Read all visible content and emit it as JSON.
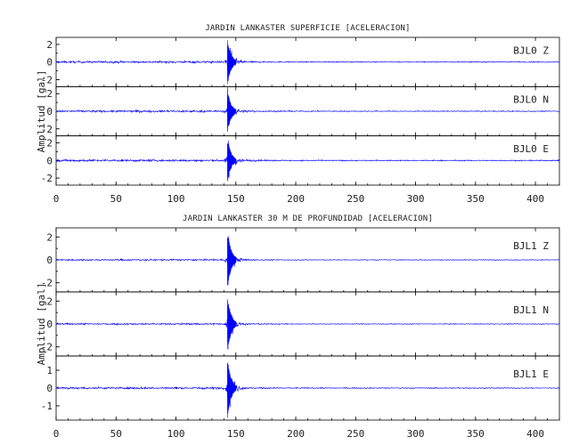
{
  "chart_data": [
    {
      "type": "line",
      "title": "JARDIN LANKASTER SUPERFICIE [ACELERACION]",
      "ylabel": "Amplitud [gal]",
      "xlim": [
        0,
        420
      ],
      "xticks": [
        0,
        50,
        100,
        150,
        200,
        250,
        300,
        350,
        400
      ],
      "line_color": "#0000ff",
      "panels": [
        {
          "label": "BJL0  Z",
          "ylim": [
            -2.8,
            2.8
          ],
          "yticks": [
            2,
            0,
            -2
          ],
          "event_x": 143,
          "peak": 2.6,
          "noise": 0.08
        },
        {
          "label": "BJL0  N",
          "ylim": [
            -2.8,
            2.8
          ],
          "yticks": [
            2,
            0,
            -2
          ],
          "event_x": 143,
          "peak": 2.5,
          "noise": 0.08
        },
        {
          "label": "BJL0  E",
          "ylim": [
            -2.8,
            2.8
          ],
          "yticks": [
            2,
            0,
            -2
          ],
          "event_x": 143,
          "peak": 2.6,
          "noise": 0.09
        }
      ]
    },
    {
      "type": "line",
      "title": "JARDIN LANKASTER 30 M DE PROFUNDIDAD [ACELERACION]",
      "ylabel": "Amplitud [gal]",
      "xlim": [
        0,
        420
      ],
      "xticks": [
        0,
        50,
        100,
        150,
        200,
        250,
        300,
        350,
        400
      ],
      "line_color": "#0000ff",
      "panels": [
        {
          "label": "BJL1  Z",
          "ylim": [
            -2.8,
            2.8
          ],
          "yticks": [
            2,
            0,
            -2
          ],
          "event_x": 143,
          "peak": 2.6,
          "noise": 0.05
        },
        {
          "label": "BJL1  N",
          "ylim": [
            -2.8,
            2.8
          ],
          "yticks": [
            2,
            0,
            -2
          ],
          "event_x": 143,
          "peak": 2.6,
          "noise": 0.05
        },
        {
          "label": "BJL1  E",
          "ylim": [
            -1.8,
            1.8
          ],
          "yticks": [
            1,
            0,
            -1
          ],
          "event_x": 143,
          "peak": 1.7,
          "noise": 0.04
        }
      ]
    }
  ]
}
